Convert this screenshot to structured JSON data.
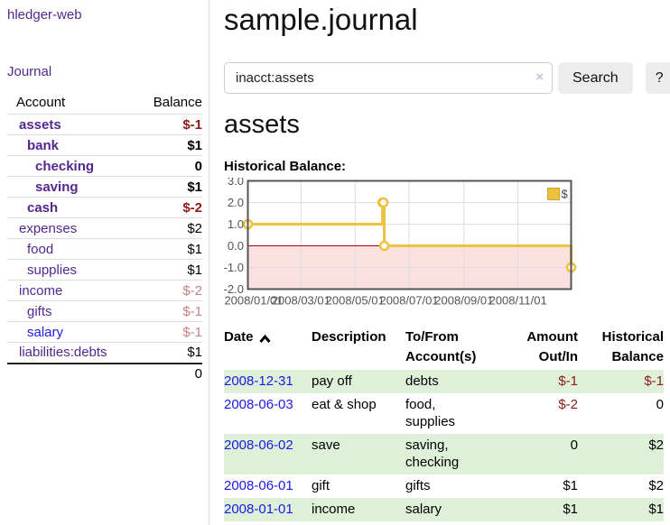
{
  "colors": {
    "link_purple": "#54278f",
    "link_blue": "#1a1ae6",
    "negative_strong": "#8e1a1a",
    "negative_dim": "#c98080",
    "row_shade_green": "#dff0d8",
    "series_yellow": "#edc240"
  },
  "sidebar": {
    "brand": "hledger-web",
    "nav": [
      {
        "label": "Journal"
      }
    ],
    "accounts": {
      "header": {
        "account": "Account",
        "balance": "Balance"
      },
      "rows": [
        {
          "name": "assets",
          "level": 1,
          "balance": "$-1",
          "in_acct": true,
          "neg_strong": true
        },
        {
          "name": "bank",
          "level": 2,
          "balance": "$1",
          "in_acct": true
        },
        {
          "name": "checking",
          "level": 3,
          "balance": "0",
          "in_acct": true
        },
        {
          "name": "saving",
          "level": 3,
          "balance": "$1",
          "in_acct": true
        },
        {
          "name": "cash",
          "level": 2,
          "balance": "$-2",
          "in_acct": true,
          "neg_strong": true
        },
        {
          "name": "expenses",
          "level": 1,
          "balance": "$2"
        },
        {
          "name": "food",
          "level": 2,
          "balance": "$1"
        },
        {
          "name": "supplies",
          "level": 2,
          "balance": "$1"
        },
        {
          "name": "income",
          "level": 1,
          "balance": "$-2",
          "neg_dim": true
        },
        {
          "name": "gifts",
          "level": 2,
          "balance": "$-1",
          "neg_dim": true
        },
        {
          "name": "salary",
          "level": 2,
          "balance": "$-1",
          "neg_dim": true,
          "unvisited": true
        },
        {
          "name": "liabilities:debts",
          "level": 1,
          "balance": "$1"
        }
      ],
      "total": "0"
    }
  },
  "main": {
    "title": "sample.journal",
    "search": {
      "value": "inacct:assets",
      "clear_icon": "×",
      "button": "Search",
      "help": "?"
    },
    "heading": "assets",
    "chart_title": "Historical Balance:"
  },
  "chart_data": {
    "type": "line",
    "step": true,
    "title": "Historical Balance",
    "series": [
      {
        "name": "$",
        "color": "#edc240",
        "points": [
          {
            "date": "2008-01-01",
            "value": 1
          },
          {
            "date": "2008-06-01",
            "value": 2
          },
          {
            "date": "2008-06-02",
            "value": 2
          },
          {
            "date": "2008-06-03",
            "value": 0
          },
          {
            "date": "2008-12-31",
            "value": -1
          }
        ]
      }
    ],
    "x_domain": [
      "2008-01-01",
      "2008-12-31"
    ],
    "x_tick_labels": [
      "2008/01/01",
      "2008/03/01",
      "2008/05/01",
      "2008/07/01",
      "2008/09/01",
      "2008/11/01"
    ],
    "y_ticks": [
      "3.0",
      "2.0",
      "1.0",
      "0.0",
      "-1.0",
      "-2.0"
    ],
    "ylim": [
      -2,
      3
    ],
    "grid": true,
    "legend": {
      "label": "$",
      "position": "top-right"
    },
    "negative_region": {
      "from": 0,
      "to": -2,
      "fill": "#fbe0e0",
      "zero_line_color": "#aa0000"
    },
    "border_color": "#545454",
    "grid_color": "#dcdcdc"
  },
  "register": {
    "headers": {
      "date": "Date",
      "description": "Description",
      "accounts": "To/From Account(s)",
      "amount": "Amount Out/In",
      "balance": "Historical Balance"
    },
    "sort_icon": "chevron-up",
    "rows": [
      {
        "date": "2008-12-31",
        "description": "pay off",
        "accounts": "debts",
        "amount": "$-1",
        "balance": "$-1",
        "amount_neg": true,
        "balance_neg": true,
        "shaded": true
      },
      {
        "date": "2008-06-03",
        "description": "eat & shop",
        "accounts": "food, supplies",
        "amount": "$-2",
        "balance": "0",
        "amount_neg": true
      },
      {
        "date": "2008-06-02",
        "description": "save",
        "accounts": "saving, checking",
        "amount": "0",
        "balance": "$2",
        "shaded": true
      },
      {
        "date": "2008-06-01",
        "description": "gift",
        "accounts": "gifts",
        "amount": "$1",
        "balance": "$2"
      },
      {
        "date": "2008-01-01",
        "description": "income",
        "accounts": "salary",
        "amount": "$1",
        "balance": "$1",
        "shaded": true
      }
    ]
  }
}
